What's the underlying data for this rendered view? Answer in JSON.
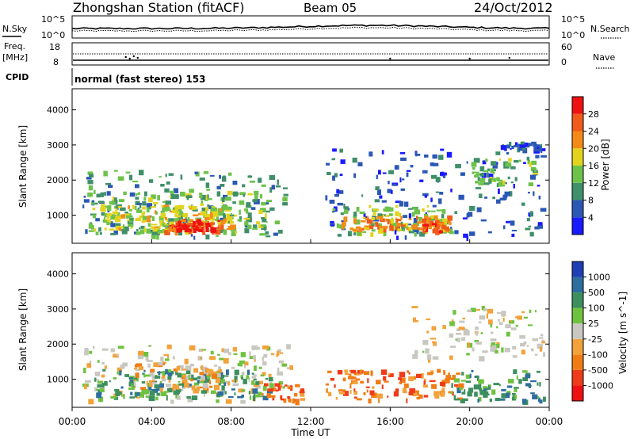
{
  "header": {
    "station": "Zhongshan Station (fitACF)",
    "beam": "Beam 05",
    "date": "24/Oct/2012"
  },
  "top_panel": {
    "left_label": "N.Sky",
    "right_label": "N.Search",
    "left_ticks": [
      "10^5",
      "10^0"
    ],
    "right_ticks": [
      "10^5",
      "10^0"
    ]
  },
  "freq_panel": {
    "left_label_1": "Freq.",
    "left_label_2": "[MHz]",
    "right_label": "Nave",
    "left_ticks": [
      "18",
      "8"
    ],
    "right_ticks": [
      "60",
      "0"
    ]
  },
  "cpid": {
    "label": "CPID",
    "mode_text": "normal (fast stereo) 153"
  },
  "time_axis": {
    "ticks": [
      "00:00",
      "04:00",
      "08:00",
      "12:00",
      "16:00",
      "20:00",
      "00:00"
    ],
    "label": "Time UT"
  },
  "chart_data": [
    {
      "type": "heatmap",
      "panel": "power",
      "ylabel": "Slant Range [km]",
      "yticks": [
        1000,
        2000,
        3000,
        4000
      ],
      "ylim": [
        200,
        4600
      ],
      "xlim": [
        0,
        24
      ],
      "colorbar": {
        "label": "Power [dB]",
        "tick_labels": [
          "4",
          "8",
          "12",
          "16",
          "20",
          "24",
          "28"
        ],
        "colors": [
          "#1a1aff",
          "#2b58b5",
          "#3f8f6a",
          "#6cc24a",
          "#e2d31e",
          "#f38a17",
          "#f05a1a",
          "#ee1111"
        ]
      },
      "regions": [
        {
          "t0": 0.5,
          "t1": 11,
          "r0": 400,
          "r1": 2300,
          "level": 2
        },
        {
          "t0": 0.8,
          "t1": 10,
          "r0": 500,
          "r1": 1700,
          "level": 3
        },
        {
          "t0": 1,
          "t1": 8,
          "r0": 550,
          "r1": 1300,
          "level": 4
        },
        {
          "t0": 4.5,
          "t1": 7.5,
          "r0": 550,
          "r1": 900,
          "level": 6
        },
        {
          "t0": 5,
          "t1": 7,
          "r0": 600,
          "r1": 850,
          "level": 7
        },
        {
          "t0": 12.7,
          "t1": 23.7,
          "r0": 400,
          "r1": 2900,
          "level": 1
        },
        {
          "t0": 13,
          "t1": 19,
          "r0": 500,
          "r1": 1300,
          "level": 3
        },
        {
          "t0": 13.5,
          "t1": 19,
          "r0": 600,
          "r1": 1000,
          "level": 5
        },
        {
          "t0": 17.5,
          "t1": 18.8,
          "r0": 550,
          "r1": 800,
          "level": 6
        },
        {
          "t0": 20,
          "t1": 23.5,
          "r0": 1800,
          "r1": 2700,
          "level": 3
        },
        {
          "t0": 21.5,
          "t1": 23.7,
          "r0": 2900,
          "r1": 3100,
          "level": 1
        }
      ]
    },
    {
      "type": "heatmap",
      "panel": "velocity",
      "ylabel": "Slant Range [km]",
      "yticks": [
        1000,
        2000,
        3000,
        4000
      ],
      "ylim": [
        200,
        4600
      ],
      "xlim": [
        0,
        24
      ],
      "colorbar": {
        "label": "Velocity [m s^-1]",
        "tick_labels": [
          "1000",
          "500",
          "100",
          "25",
          "-25",
          "-100",
          "-500",
          "-1000"
        ],
        "colors": [
          "#1f3fb5",
          "#2e6e9e",
          "#3d8f5e",
          "#6fc23f",
          "#c8c8c0",
          "#f2a23a",
          "#f07d14",
          "#ee3b1a",
          "#ee1111"
        ]
      },
      "regions": [
        {
          "t0": 0.5,
          "t1": 11,
          "r0": 400,
          "r1": 2000,
          "level": 4
        },
        {
          "t0": 1,
          "t1": 10,
          "r0": 500,
          "r1": 1300,
          "level": 2
        },
        {
          "t0": 3,
          "t1": 7.5,
          "r0": 700,
          "r1": 1500,
          "level": 5
        },
        {
          "t0": 9.5,
          "t1": 11.5,
          "r0": 400,
          "r1": 900,
          "level": 6
        },
        {
          "t0": 12.7,
          "t1": 19.5,
          "r0": 450,
          "r1": 1300,
          "level": 6
        },
        {
          "t0": 19,
          "t1": 23.7,
          "r0": 400,
          "r1": 1300,
          "level": 2
        },
        {
          "t0": 17,
          "t1": 23.7,
          "r0": 1600,
          "r1": 3100,
          "level": 4
        }
      ]
    }
  ]
}
